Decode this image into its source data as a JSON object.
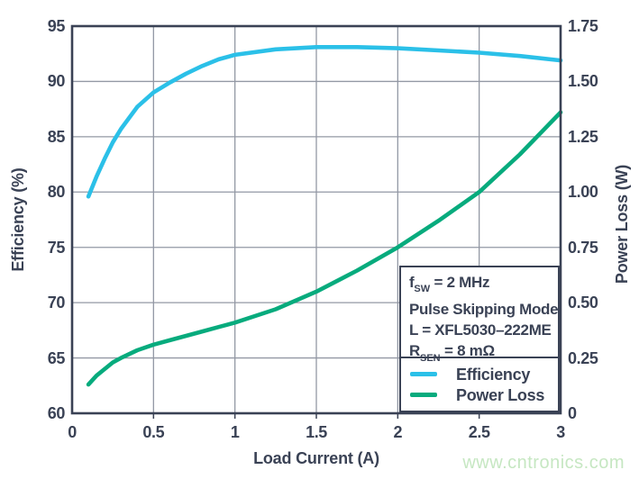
{
  "watermark": "www.cntronics.com",
  "colors": {
    "background": "#FFFFFF",
    "axis": "#3A4255",
    "grid": "#9398A4",
    "efficiency": "#2BC0E8",
    "power_loss": "#07AB7D",
    "watermark": "#C6E7C2"
  },
  "chart_data": {
    "type": "line",
    "title": "",
    "xlabel": "Load Current (A)",
    "ylabel_left": "Efficiency (%)",
    "ylabel_right": "Power Loss (W)",
    "xlim": [
      0,
      3
    ],
    "ylim_left": [
      60,
      95
    ],
    "ylim_right": [
      0,
      1.75
    ],
    "grid": true,
    "x_ticks": [
      0,
      0.5,
      1,
      1.5,
      2,
      2.5,
      3
    ],
    "x_tick_labels": [
      "0",
      "0.5",
      "1",
      "1.5",
      "2",
      "2.5",
      "3"
    ],
    "y_left_ticks": [
      60,
      65,
      70,
      75,
      80,
      85,
      90,
      95
    ],
    "y_left_tick_labels": [
      "60",
      "65",
      "70",
      "75",
      "80",
      "85",
      "90",
      "95"
    ],
    "y_right_ticks": [
      0,
      0.25,
      0.5,
      0.75,
      1,
      1.25,
      1.5,
      1.75
    ],
    "y_right_tick_labels": [
      "0",
      "0.25",
      "0.50",
      "0.75",
      "1.00",
      "1.25",
      "1.50",
      "1.75"
    ],
    "series": [
      {
        "name": "Efficiency",
        "axis": "left",
        "color": "#2BC0E8",
        "x": [
          0.1,
          0.15,
          0.2,
          0.25,
          0.3,
          0.4,
          0.5,
          0.6,
          0.7,
          0.8,
          0.9,
          1.0,
          1.25,
          1.5,
          1.75,
          2.0,
          2.25,
          2.5,
          2.75,
          3.0
        ],
        "y": [
          79.6,
          81.4,
          83.0,
          84.5,
          85.7,
          87.7,
          89.0,
          89.9,
          90.7,
          91.4,
          92.0,
          92.4,
          92.9,
          93.1,
          93.1,
          93.0,
          92.8,
          92.6,
          92.3,
          91.9
        ]
      },
      {
        "name": "Power Loss",
        "axis": "right",
        "color": "#07AB7D",
        "x": [
          0.1,
          0.15,
          0.2,
          0.25,
          0.3,
          0.4,
          0.5,
          0.6,
          0.7,
          0.8,
          0.9,
          1.0,
          1.25,
          1.5,
          1.75,
          2.0,
          2.25,
          2.5,
          2.75,
          3.0
        ],
        "y": [
          0.13,
          0.17,
          0.2,
          0.23,
          0.25,
          0.285,
          0.31,
          0.33,
          0.35,
          0.37,
          0.39,
          0.41,
          0.47,
          0.55,
          0.645,
          0.75,
          0.87,
          1.0,
          1.17,
          1.36
        ]
      }
    ],
    "legend": {
      "position": "lower right",
      "items": [
        {
          "label": "Efficiency",
          "color": "#2BC0E8"
        },
        {
          "label": "Power Loss",
          "color": "#07AB7D"
        }
      ]
    },
    "annotation": {
      "line1": {
        "pre": "f",
        "sub": "SW",
        "post": " = 2 MHz"
      },
      "line2": "Pulse Skipping Mode",
      "line3": "L = XFL5030–222ME",
      "line4": {
        "pre": "R",
        "sub": "SEN",
        "post": " = 8 mΩ"
      }
    }
  }
}
